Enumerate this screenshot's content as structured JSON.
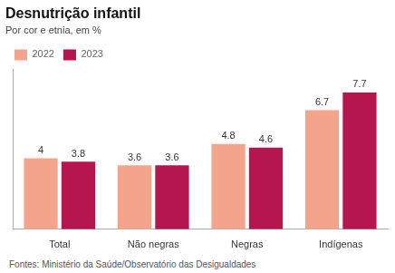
{
  "chart_data": {
    "type": "bar",
    "title": "Desnutrição infantil",
    "subtitle": "Por cor e etnia, em %",
    "categories": [
      "Total",
      "Não negras",
      "Negras",
      "Indígenas"
    ],
    "series": [
      {
        "name": "2022",
        "color": "#f4a48a",
        "values": [
          4.0,
          3.6,
          4.8,
          6.7
        ]
      },
      {
        "name": "2023",
        "color": "#b5164d",
        "values": [
          3.8,
          3.6,
          4.6,
          7.7
        ]
      }
    ],
    "ylim": [
      0,
      9
    ],
    "grid": false,
    "legend": "top",
    "data_labels": true,
    "tick_labels": "x",
    "footnote": "Fontes: Ministério da Saúde/Observatório das Desigualdades"
  }
}
